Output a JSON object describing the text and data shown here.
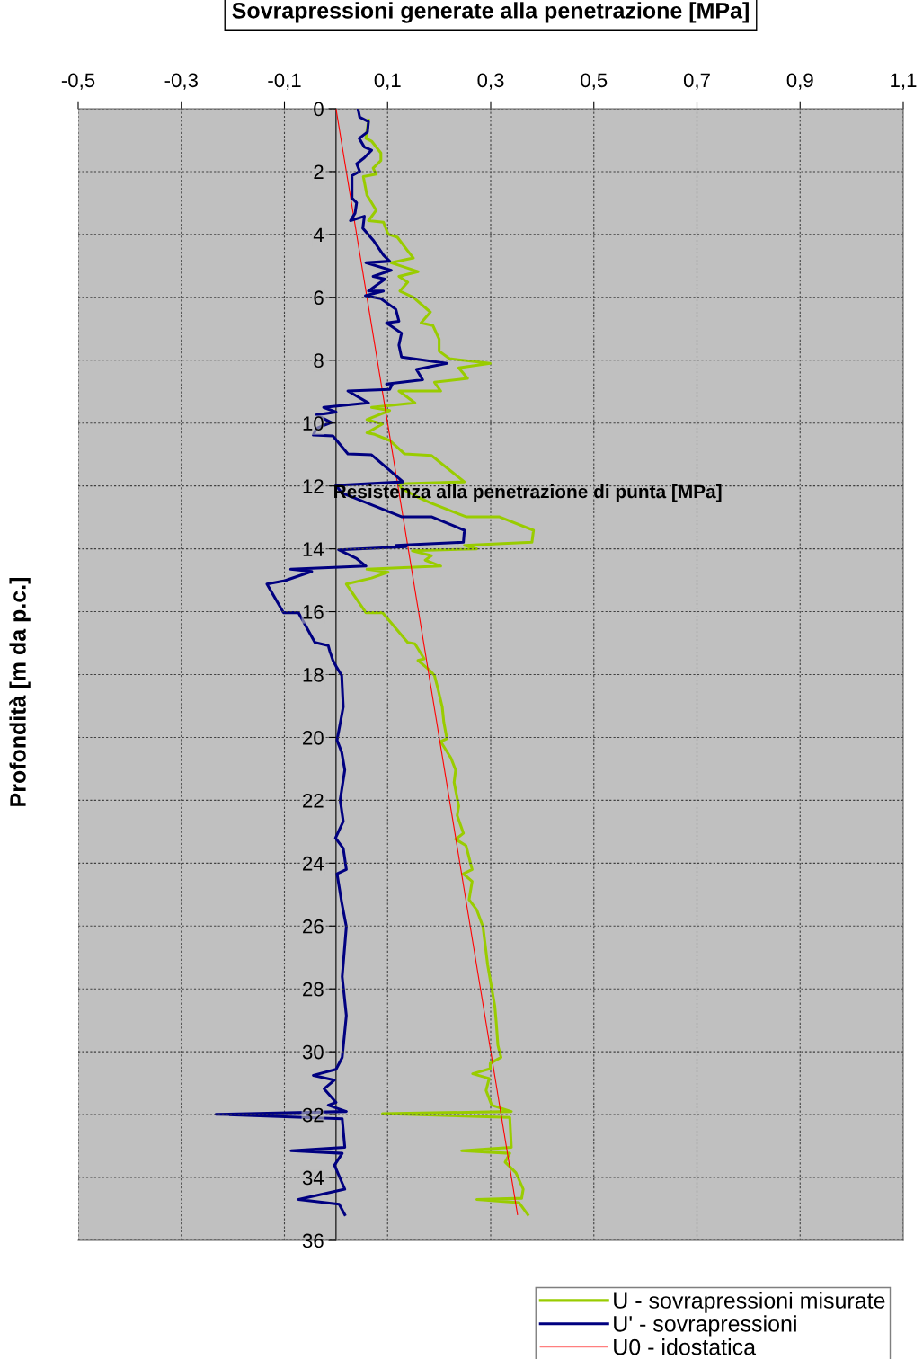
{
  "chart_data": {
    "type": "line",
    "title": "Sovrapressioni generate alla penetrazione [MPa]",
    "ylabel": "Profondità [m da p.c.]",
    "annotations": [
      "Resistenza alla penetrazione di punta [MPa]"
    ],
    "xlim": [
      -0.5,
      1.1
    ],
    "xticks": [
      {
        "value": -0.5,
        "label": "-0,5"
      },
      {
        "value": -0.3,
        "label": "-0,3"
      },
      {
        "value": -0.1,
        "label": "-0,1"
      },
      {
        "value": 0.1,
        "label": "0,1"
      },
      {
        "value": 0.3,
        "label": "0,3"
      },
      {
        "value": 0.5,
        "label": "0,5"
      },
      {
        "value": 0.7,
        "label": "0,7"
      },
      {
        "value": 0.9,
        "label": "0,9"
      },
      {
        "value": 1.1,
        "label": "1,1"
      }
    ],
    "ylim": [
      36,
      0
    ],
    "yticks": [
      0,
      2,
      4,
      6,
      8,
      10,
      12,
      14,
      16,
      18,
      20,
      22,
      24,
      26,
      28,
      30,
      32,
      34,
      36
    ],
    "grid": true,
    "legend": "bottom right",
    "series": [
      {
        "name": "U - sovrapressioni misurate",
        "color": "#99cc00",
        "x": [
          0.063,
          0.058,
          0.069,
          0.087,
          0.087,
          0.072,
          0.078,
          0.053,
          0.06,
          0.069,
          0.078,
          0.063,
          0.092,
          0.101,
          0.119,
          0.139,
          0.15,
          0.107,
          0.159,
          0.122,
          0.139,
          0.124,
          0.15,
          0.183,
          0.165,
          0.188,
          0.2,
          0.2,
          0.22,
          0.299,
          0.238,
          0.255,
          0.191,
          0.203,
          0.122,
          0.153,
          0.069,
          0.104,
          0.06,
          0.09,
          0.06,
          0.075,
          0.104,
          0.133,
          0.185,
          0.249,
          0.122,
          0.127,
          0.159,
          0.185,
          0.252,
          0.316,
          0.383,
          0.38,
          0.249,
          0.273,
          0.148,
          0.185,
          0.173,
          0.203,
          0.06,
          0.101,
          0.069,
          0.02,
          0.058,
          0.09,
          0.139,
          0.153,
          0.171,
          0.159,
          0.18,
          0.191,
          0.197,
          0.206,
          0.209,
          0.215,
          0.203,
          0.223,
          0.232,
          0.229,
          0.238,
          0.235,
          0.247,
          0.232,
          0.252,
          0.264,
          0.247,
          0.264,
          0.258,
          0.273,
          0.285,
          0.294,
          0.308,
          0.311,
          0.314,
          0.32,
          0.299,
          0.299,
          0.265,
          0.297,
          0.291,
          0.302,
          0.34,
          0.09,
          0.337,
          0.34,
          0.244,
          0.337,
          0.328,
          0.349,
          0.363,
          0.36,
          0.273,
          0.355,
          0.372
        ],
        "values": [
          0.36,
          0.94,
          1.03,
          1.41,
          1.65,
          1.89,
          2.08,
          2.16,
          2.75,
          2.99,
          3.23,
          3.56,
          3.61,
          3.99,
          4.09,
          4.52,
          4.75,
          4.9,
          5.18,
          5.33,
          5.52,
          5.8,
          6.0,
          6.47,
          6.81,
          6.9,
          7.33,
          7.71,
          7.95,
          8.1,
          8.24,
          8.58,
          8.7,
          8.98,
          8.98,
          9.36,
          9.5,
          9.6,
          9.89,
          10.03,
          10.31,
          10.36,
          10.55,
          10.98,
          11.03,
          11.87,
          11.93,
          12.08,
          12.36,
          12.55,
          12.98,
          12.98,
          13.41,
          13.79,
          13.89,
          14.0,
          14.06,
          14.22,
          14.36,
          14.55,
          14.65,
          14.74,
          14.93,
          15.12,
          16.03,
          16.03,
          16.98,
          17.02,
          17.5,
          17.55,
          17.84,
          18.03,
          18.41,
          19.03,
          19.51,
          20.04,
          20.13,
          20.66,
          21.04,
          21.43,
          22.19,
          22.48,
          23.05,
          23.24,
          23.44,
          24.2,
          24.34,
          24.58,
          25.16,
          25.49,
          26.02,
          27.23,
          28.56,
          29.13,
          29.8,
          30.18,
          30.37,
          30.54,
          30.7,
          30.85,
          31.23,
          31.7,
          31.9,
          31.97,
          32.09,
          33.04,
          33.15,
          33.23,
          33.51,
          33.85,
          34.37,
          34.66,
          34.7,
          34.8,
          35.18
        ]
      },
      {
        "name": "U' - sovrapressioni",
        "color": "#000080",
        "x": [
          0.043,
          0.046,
          0.063,
          0.061,
          0.045,
          0.055,
          0.069,
          0.055,
          0.04,
          0.046,
          0.031,
          0.031,
          0.04,
          0.037,
          0.028,
          0.055,
          0.052,
          0.072,
          0.092,
          0.104,
          0.058,
          0.107,
          0.072,
          0.095,
          0.063,
          0.092,
          0.057,
          0.087,
          0.116,
          0.122,
          0.098,
          0.127,
          0.122,
          0.127,
          0.215,
          0.156,
          0.168,
          0.098,
          0.11,
          0.104,
          0.023,
          0.063,
          -0.024,
          0.0,
          -0.038,
          -0.009,
          -0.038,
          -0.044,
          -0.006,
          0.023,
          0.069,
          0.13,
          0.0,
          0.011,
          0.127,
          0.185,
          0.249,
          0.247,
          0.116,
          0.136,
          0.005,
          0.04,
          0.058,
          -0.088,
          -0.047,
          -0.099,
          -0.134,
          -0.102,
          -0.073,
          -0.041,
          -0.015,
          -0.012,
          -0.006,
          0.002,
          0.011,
          0.014,
          0.002,
          0.011,
          0.017,
          0.008,
          0.014,
          -0.001,
          0.014,
          0.02,
          0.002,
          0.011,
          0.02,
          0.012,
          0.02,
          0.012,
          0.0,
          -0.044,
          -0.003,
          -0.023,
          0.0,
          -0.015,
          0.02,
          -0.233,
          0.012,
          0.017,
          -0.087,
          0.012,
          -0.003,
          0.017,
          -0.073,
          0.006,
          0.017
        ],
        "values": [
          0.03,
          0.27,
          0.41,
          0.74,
          0.94,
          1.22,
          1.32,
          1.56,
          1.75,
          1.99,
          2.13,
          2.84,
          2.99,
          3.32,
          3.56,
          3.42,
          3.8,
          4.18,
          4.66,
          4.85,
          4.9,
          5.14,
          5.33,
          5.42,
          5.8,
          5.8,
          5.95,
          6.04,
          6.38,
          6.76,
          6.81,
          7.14,
          7.52,
          7.9,
          8.1,
          8.29,
          8.62,
          8.76,
          8.74,
          8.93,
          8.98,
          9.36,
          9.5,
          9.65,
          9.74,
          9.98,
          10.17,
          10.38,
          10.41,
          10.98,
          11.01,
          11.87,
          11.98,
          12.22,
          12.98,
          12.98,
          13.41,
          13.79,
          13.89,
          13.93,
          14.03,
          14.31,
          14.55,
          14.65,
          14.72,
          15.01,
          15.12,
          16.03,
          16.03,
          16.98,
          17.08,
          17.26,
          17.55,
          17.79,
          18.03,
          19.03,
          20.09,
          20.47,
          21.04,
          21.99,
          22.67,
          23.2,
          23.53,
          24.2,
          24.34,
          25.25,
          26.02,
          27.61,
          28.85,
          30.18,
          30.56,
          30.75,
          30.9,
          31.18,
          31.61,
          31.7,
          31.9,
          31.99,
          32.13,
          33.04,
          33.15,
          33.23,
          33.61,
          34.37,
          34.7,
          34.85,
          35.18
        ]
      },
      {
        "name": "U0 - idostatica",
        "color": "#ff0000",
        "x": [
          0.0,
          0.352
        ],
        "values": [
          0.0,
          35.18
        ]
      }
    ]
  }
}
